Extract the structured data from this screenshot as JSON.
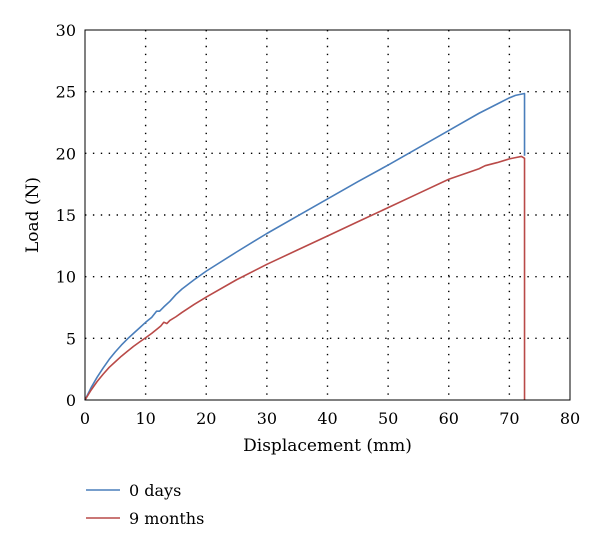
{
  "chart_data": {
    "type": "line",
    "title": "",
    "xlabel": "Displacement (mm)",
    "ylabel": "Load (N)",
    "xlim": [
      0,
      80
    ],
    "ylim": [
      0,
      30
    ],
    "xticks": [
      0,
      10,
      20,
      30,
      40,
      50,
      60,
      70,
      80
    ],
    "yticks": [
      0,
      5,
      10,
      15,
      20,
      25,
      30
    ],
    "grid": "dotted",
    "legend_position": "bottom-left",
    "series": [
      {
        "name": "0 days",
        "color": "#4a7ebb",
        "x": [
          0,
          1,
          2,
          3,
          4,
          5,
          6,
          7,
          8,
          9,
          10,
          11,
          11.8,
          12.3,
          13,
          14,
          15,
          16,
          18,
          20,
          25,
          30,
          35,
          40,
          45,
          50,
          55,
          60,
          65,
          68,
          70,
          71,
          72,
          72.5,
          72.5
        ],
        "y": [
          0,
          1.0,
          1.85,
          2.6,
          3.3,
          3.9,
          4.45,
          4.95,
          5.4,
          5.85,
          6.3,
          6.7,
          7.2,
          7.2,
          7.55,
          8.0,
          8.55,
          9.0,
          9.75,
          10.45,
          12.0,
          13.5,
          14.9,
          16.3,
          17.7,
          19.05,
          20.45,
          21.85,
          23.25,
          24.0,
          24.5,
          24.7,
          24.8,
          24.85,
          19.8
        ]
      },
      {
        "name": "9 months",
        "color": "#b94a48",
        "x": [
          0,
          1,
          2,
          3,
          4,
          5,
          6,
          7,
          8,
          9,
          10,
          11,
          12,
          12.5,
          13,
          13.5,
          14,
          15,
          16,
          18,
          20,
          25,
          30,
          35,
          40,
          45,
          50,
          55,
          60,
          65,
          66,
          68,
          70,
          71,
          72,
          72.5,
          72.5
        ],
        "y": [
          0,
          0.8,
          1.5,
          2.1,
          2.65,
          3.1,
          3.55,
          3.95,
          4.35,
          4.7,
          5.05,
          5.4,
          5.8,
          6.0,
          6.3,
          6.2,
          6.45,
          6.75,
          7.1,
          7.75,
          8.35,
          9.75,
          11.0,
          12.15,
          13.3,
          14.45,
          15.6,
          16.75,
          17.9,
          18.75,
          19.0,
          19.25,
          19.55,
          19.65,
          19.75,
          19.6,
          0
        ]
      }
    ]
  }
}
